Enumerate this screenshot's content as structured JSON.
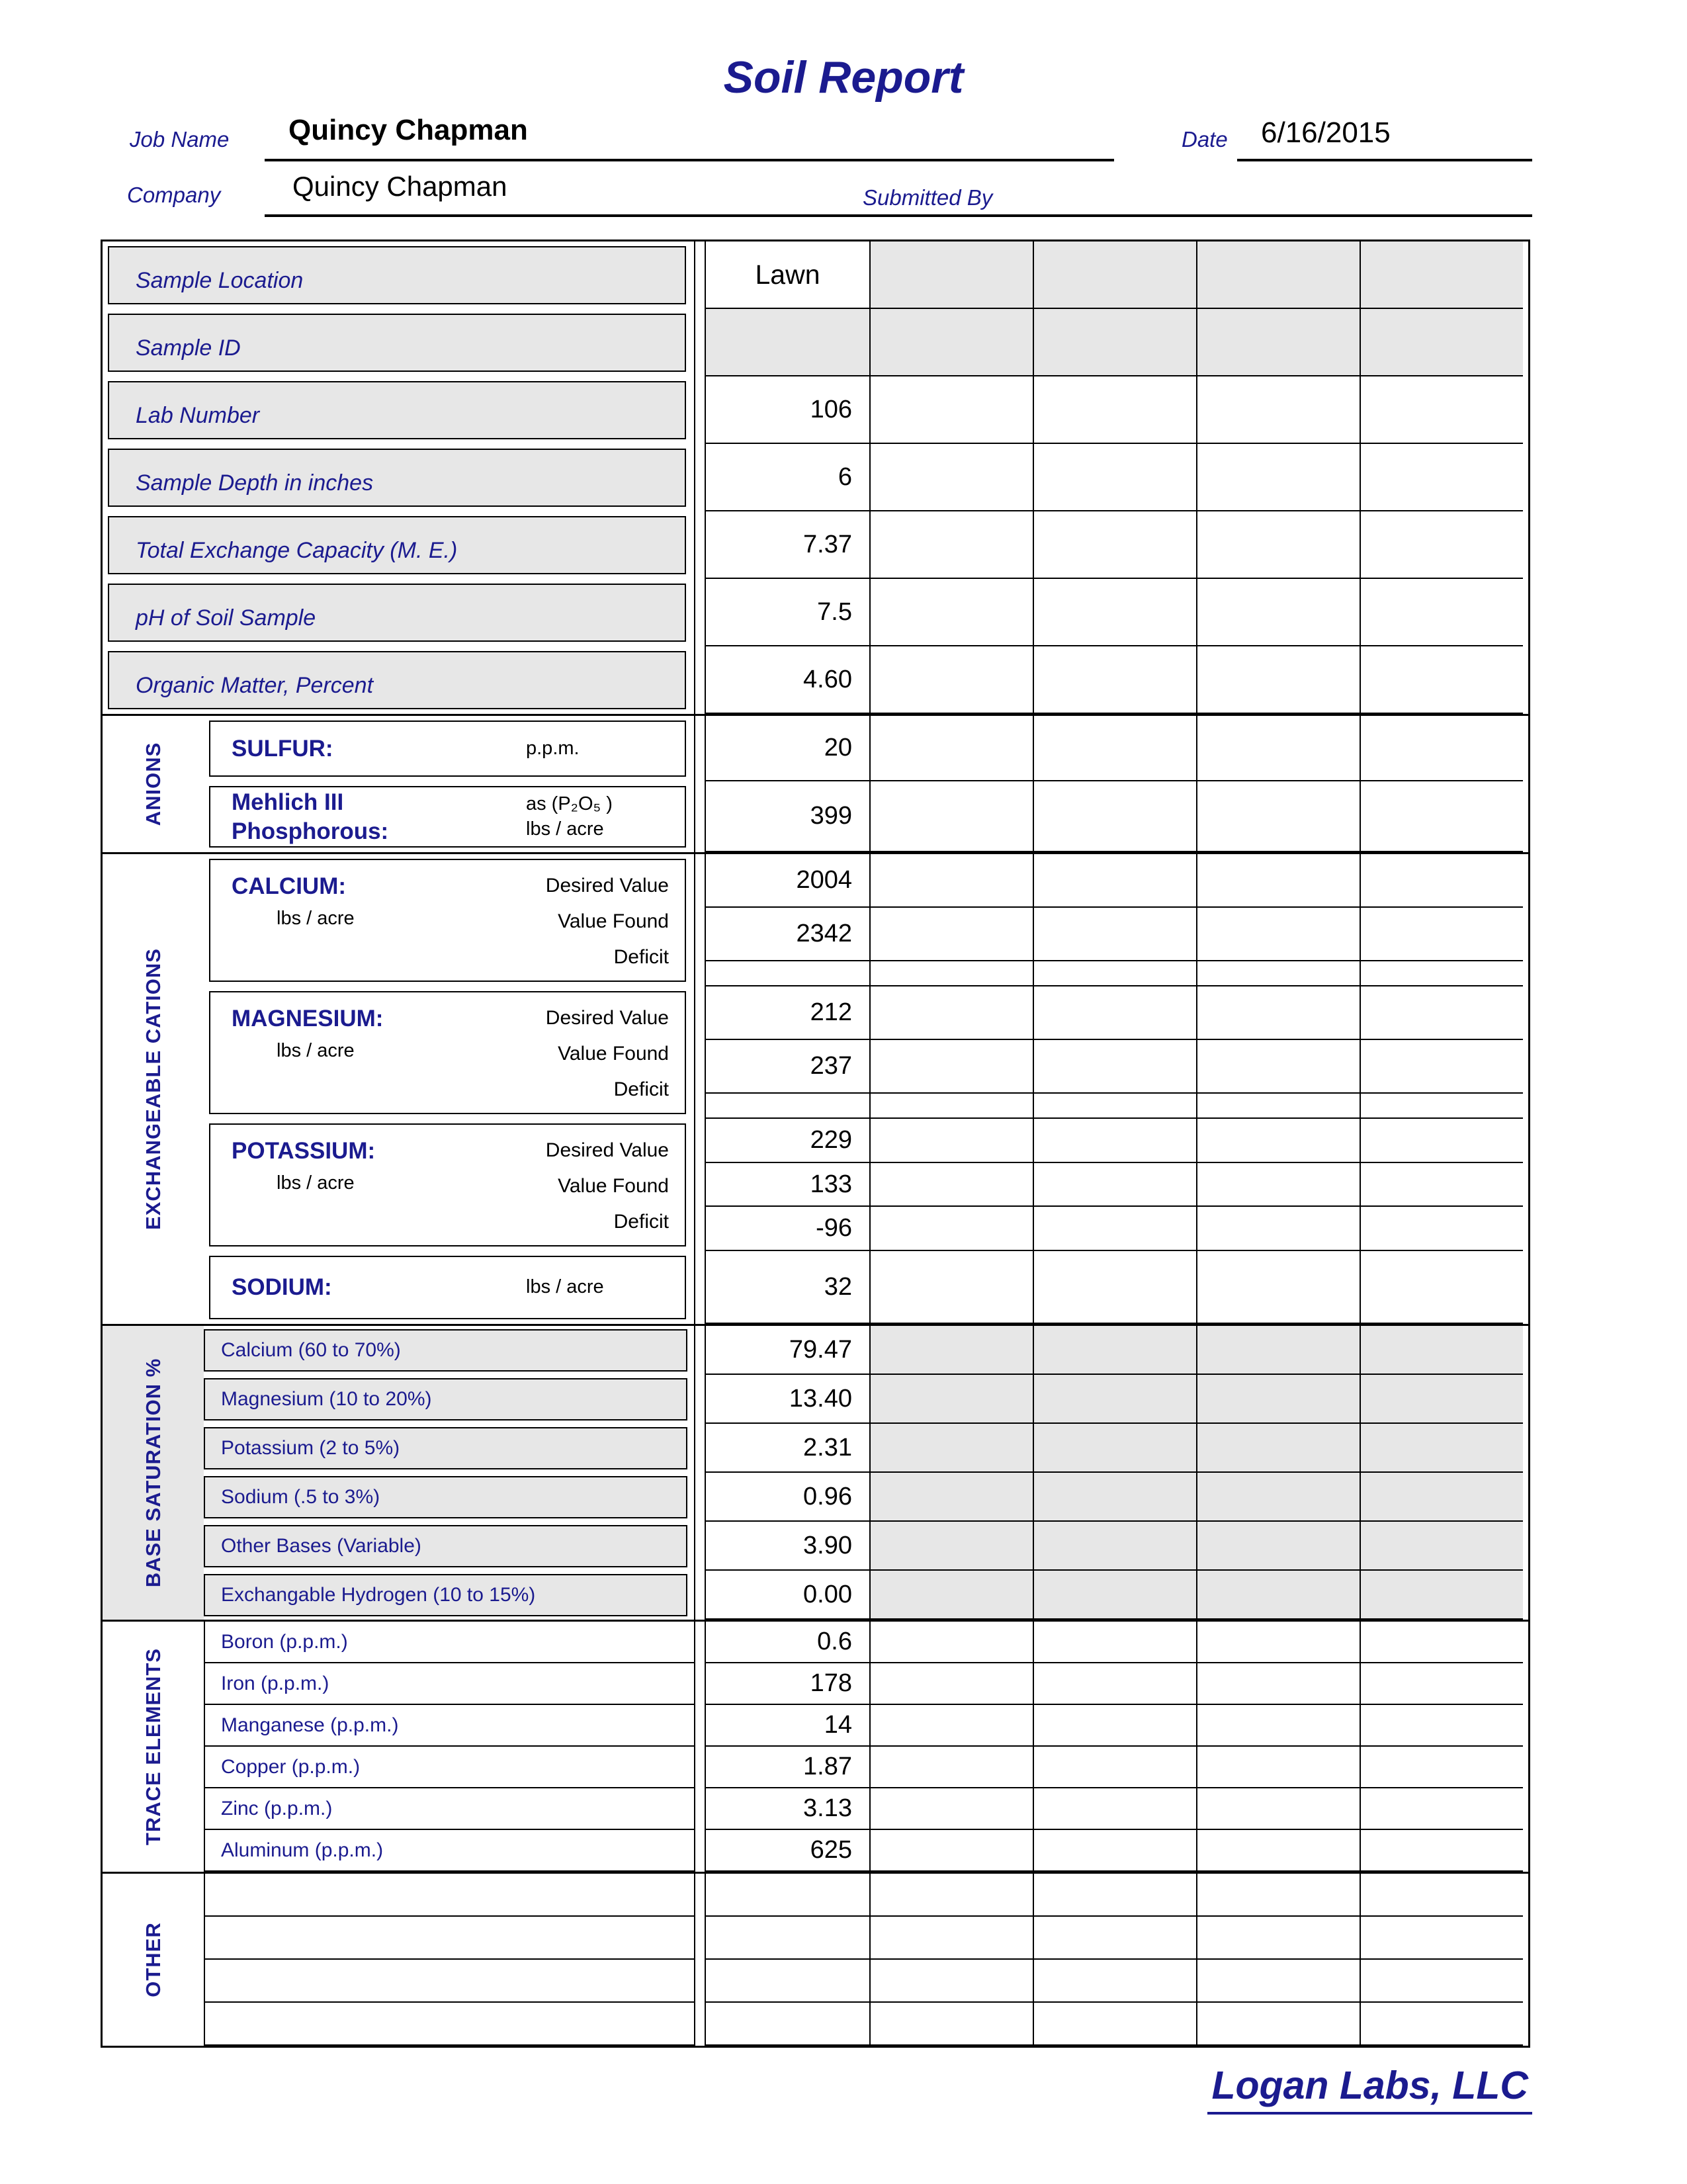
{
  "colors": {
    "navy": "#1b1b8f",
    "cell_gray": "#e7e7e7"
  },
  "title": "Soil Report",
  "header": {
    "job_name_label": "Job Name",
    "job_name": "Quincy Chapman",
    "date_label": "Date",
    "date": "6/16/2015",
    "company_label": "Company",
    "company": "Quincy Chapman",
    "submitted_by_label": "Submitted By"
  },
  "info_rows": [
    {
      "label": "Sample Location",
      "value": "Lawn"
    },
    {
      "label": "Sample ID",
      "value": ""
    },
    {
      "label": "Lab Number",
      "value": "106"
    },
    {
      "label": "Sample Depth in inches",
      "value": "6"
    },
    {
      "label": "Total Exchange Capacity (M. E.)",
      "value": "7.37"
    },
    {
      "label": "pH of Soil Sample",
      "value": "7.5"
    },
    {
      "label": "Organic Matter, Percent",
      "value": "4.60"
    }
  ],
  "anions": {
    "section_label": "ANIONS",
    "sulfur": {
      "name": "SULFUR:",
      "unit": "p.p.m.",
      "value": "20"
    },
    "phosphorous": {
      "name_line1": "Mehlich III",
      "name_line2": "Phosphorous:",
      "unit_line1": "as (P₂O₅ )",
      "unit_line2": "lbs / acre",
      "value": "399"
    }
  },
  "cations": {
    "section_label": "EXCHANGEABLE CATIONS",
    "row_labels": [
      "Desired Value",
      "Value Found",
      "Deficit"
    ],
    "calcium": {
      "name": "CALCIUM:",
      "unit": "lbs / acre",
      "desired": "2004",
      "found": "2342",
      "deficit": ""
    },
    "magnesium": {
      "name": "MAGNESIUM:",
      "unit": "lbs / acre",
      "desired": "212",
      "found": "237",
      "deficit": ""
    },
    "potassium": {
      "name": "POTASSIUM:",
      "unit": "lbs / acre",
      "desired": "229",
      "found": "133",
      "deficit": "-96"
    },
    "sodium": {
      "name": "SODIUM:",
      "unit": "lbs / acre",
      "value": "32"
    }
  },
  "base_saturation": {
    "section_label": "BASE SATURATION %",
    "rows": [
      {
        "label": "Calcium (60 to 70%)",
        "value": "79.47"
      },
      {
        "label": "Magnesium (10 to 20%)",
        "value": "13.40"
      },
      {
        "label": "Potassium (2 to 5%)",
        "value": "2.31"
      },
      {
        "label": "Sodium (.5 to 3%)",
        "value": "0.96"
      },
      {
        "label": "Other Bases (Variable)",
        "value": "3.90"
      },
      {
        "label": "Exchangable Hydrogen (10 to 15%)",
        "value": "0.00"
      }
    ]
  },
  "trace_elements": {
    "section_label": "TRACE ELEMENTS",
    "rows": [
      {
        "label": "Boron (p.p.m.)",
        "value": "0.6"
      },
      {
        "label": "Iron (p.p.m.)",
        "value": "178"
      },
      {
        "label": "Manganese (p.p.m.)",
        "value": "14"
      },
      {
        "label": "Copper (p.p.m.)",
        "value": "1.87"
      },
      {
        "label": "Zinc (p.p.m.)",
        "value": "3.13"
      },
      {
        "label": "Aluminum (p.p.m.)",
        "value": "625"
      }
    ]
  },
  "other": {
    "section_label": "OTHER"
  },
  "footer": "Logan Labs, LLC"
}
